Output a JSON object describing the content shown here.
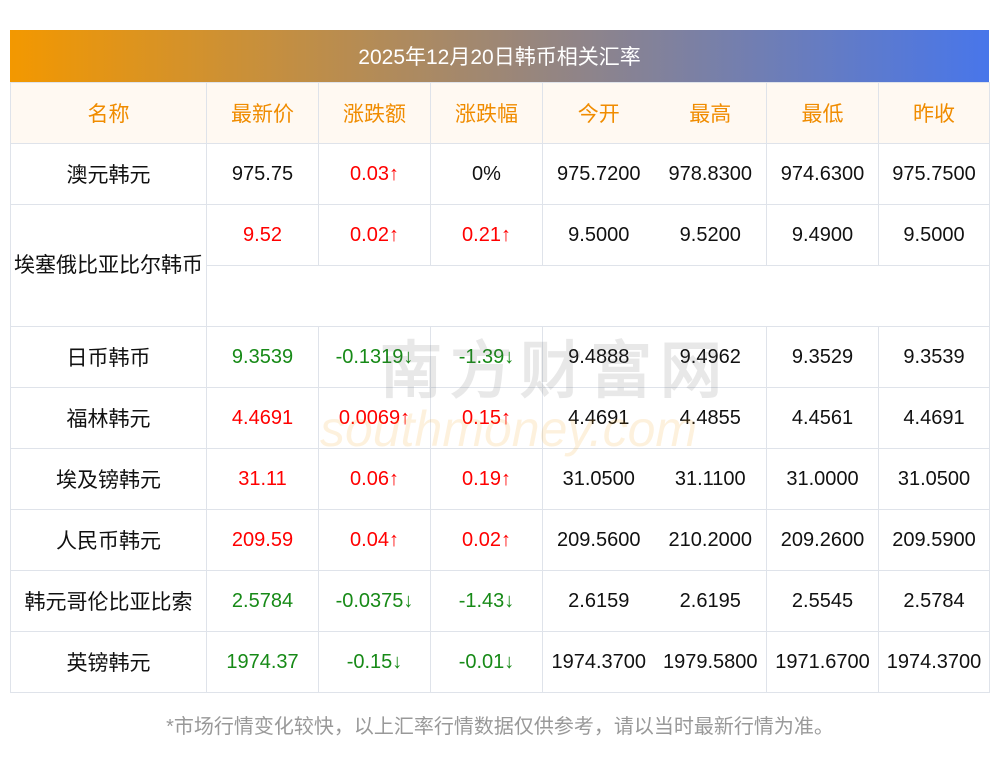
{
  "title": "2025年12月20日韩币相关汇率",
  "headers": [
    "名称",
    "最新价",
    "涨跌额",
    "涨跌幅",
    "今开",
    "最高",
    "最低",
    "昨收"
  ],
  "rows": [
    {
      "name": "澳元韩元",
      "latest": "975.75",
      "change": "0.03↑",
      "pct": "0%",
      "open": "975.7200",
      "high": "978.8300",
      "low": "974.6300",
      "prev": "975.7500",
      "dir": "up",
      "pct_dir": "flat",
      "latest_dir": "flat"
    },
    {
      "name": "埃塞俄比亚比尔韩币",
      "latest": "9.52",
      "change": "0.02↑",
      "pct": "0.21↑",
      "open": "9.5000",
      "high": "9.5200",
      "low": "9.4900",
      "prev": "9.5000",
      "dir": "up"
    },
    {
      "name": "日币韩币",
      "latest": "9.3539",
      "change": "-0.1319↓",
      "pct": "-1.39↓",
      "open": "9.4888",
      "high": "9.4962",
      "low": "9.3529",
      "prev": "9.3539",
      "dir": "down"
    },
    {
      "name": "福林韩元",
      "latest": "4.4691",
      "change": "0.0069↑",
      "pct": "0.15↑",
      "open": "4.4691",
      "high": "4.4855",
      "low": "4.4561",
      "prev": "4.4691",
      "dir": "up"
    },
    {
      "name": "埃及镑韩元",
      "latest": "31.11",
      "change": "0.06↑",
      "pct": "0.19↑",
      "open": "31.0500",
      "high": "31.1100",
      "low": "31.0000",
      "prev": "31.0500",
      "dir": "up"
    },
    {
      "name": "人民币韩元",
      "latest": "209.59",
      "change": "0.04↑",
      "pct": "0.02↑",
      "open": "209.5600",
      "high": "210.2000",
      "low": "209.2600",
      "prev": "209.5900",
      "dir": "up"
    },
    {
      "name": "韩元哥伦比亚比索",
      "latest": "2.5784",
      "change": "-0.0375↓",
      "pct": "-1.43↓",
      "open": "2.6159",
      "high": "2.6195",
      "low": "2.5545",
      "prev": "2.5784",
      "dir": "down"
    },
    {
      "name": "英镑韩元",
      "latest": "1974.37",
      "change": "-0.15↓",
      "pct": "-0.01↓",
      "open": "1974.3700",
      "high": "1979.5800",
      "low": "1971.6700",
      "prev": "1974.3700",
      "dir": "down"
    }
  ],
  "watermark": {
    "cn": "南方财富网",
    "en": "southmoney.com"
  },
  "footer": "*市场行情变化较快，以上汇率行情数据仅供参考，请以当时最新行情为准。",
  "colors": {
    "up": "#ff0000",
    "down": "#178a17",
    "header_text": "#f08c00"
  }
}
